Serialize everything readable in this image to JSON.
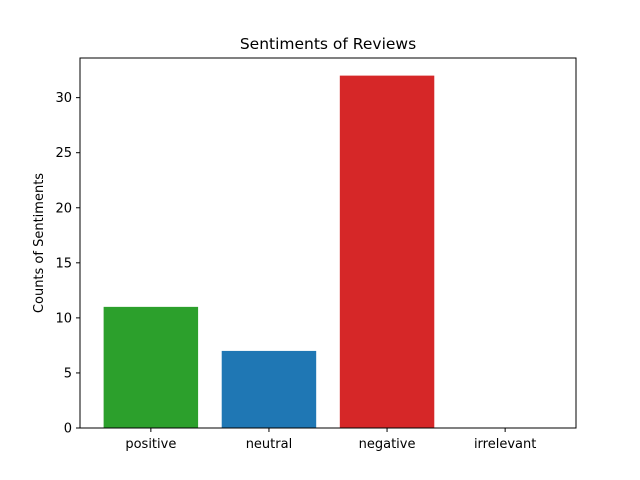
{
  "chart_data": {
    "type": "bar",
    "title": "Sentiments of Reviews",
    "xlabel": "",
    "ylabel": "Counts of Sentiments",
    "categories": [
      "positive",
      "neutral",
      "negative",
      "irrelevant"
    ],
    "values": [
      11,
      7,
      32,
      0
    ],
    "colors": [
      "#2ca02c",
      "#1f77b4",
      "#d62728",
      "#ff7f0e"
    ],
    "ylim": [
      0,
      33.6
    ],
    "yticks": [
      0,
      5,
      10,
      15,
      20,
      25,
      30
    ],
    "grid": false,
    "legend": "none"
  }
}
